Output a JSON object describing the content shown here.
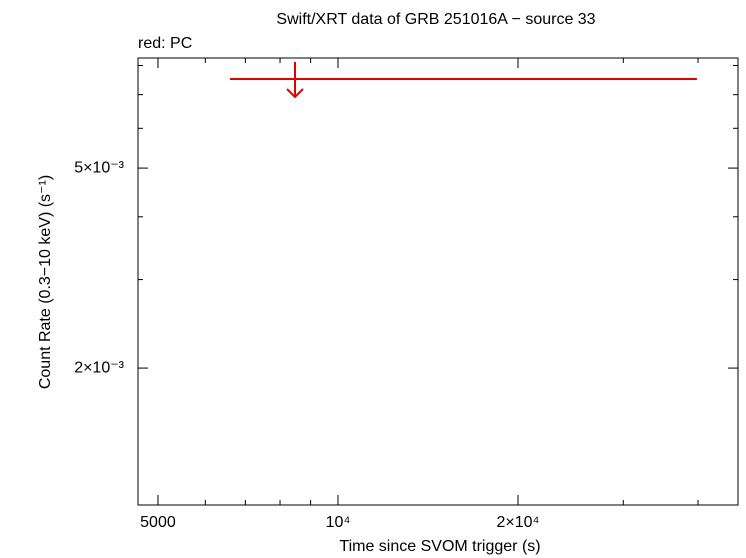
{
  "chart_data": {
    "type": "upper_limit",
    "title": "Swift/XRT data of GRB 251016A − source 33",
    "annotation": "red: PC",
    "x_label": "Time since SVOM trigger (s)",
    "y_label": "Count Rate (0.3−10 keV) (s⁻¹)",
    "xscale": "log",
    "yscale": "log",
    "xlim": [
      4630,
      46660
    ],
    "ylim": [
      0.001068,
      0.00828
    ],
    "xticks": [
      5000,
      {
        "value": 10000,
        "label": "10⁴"
      },
      {
        "value": 20000,
        "label": "2×10⁴"
      }
    ],
    "yticks": [
      {
        "value": 0.002,
        "label": "2×10⁻³"
      },
      {
        "value": 0.005,
        "label": "5×10⁻³"
      }
    ],
    "xminorticks": [
      6000,
      7000,
      8000,
      9000,
      30000,
      40000
    ],
    "yminorticks": [
      0.003,
      0.004,
      0.006,
      0.007,
      0.008
    ],
    "series": [
      {
        "color": "#e00000",
        "x": [
          8475
        ],
        "x_low": [
          6597
        ],
        "x_high": [
          39830
        ],
        "values": [
          0.00752
        ]
      }
    ]
  }
}
